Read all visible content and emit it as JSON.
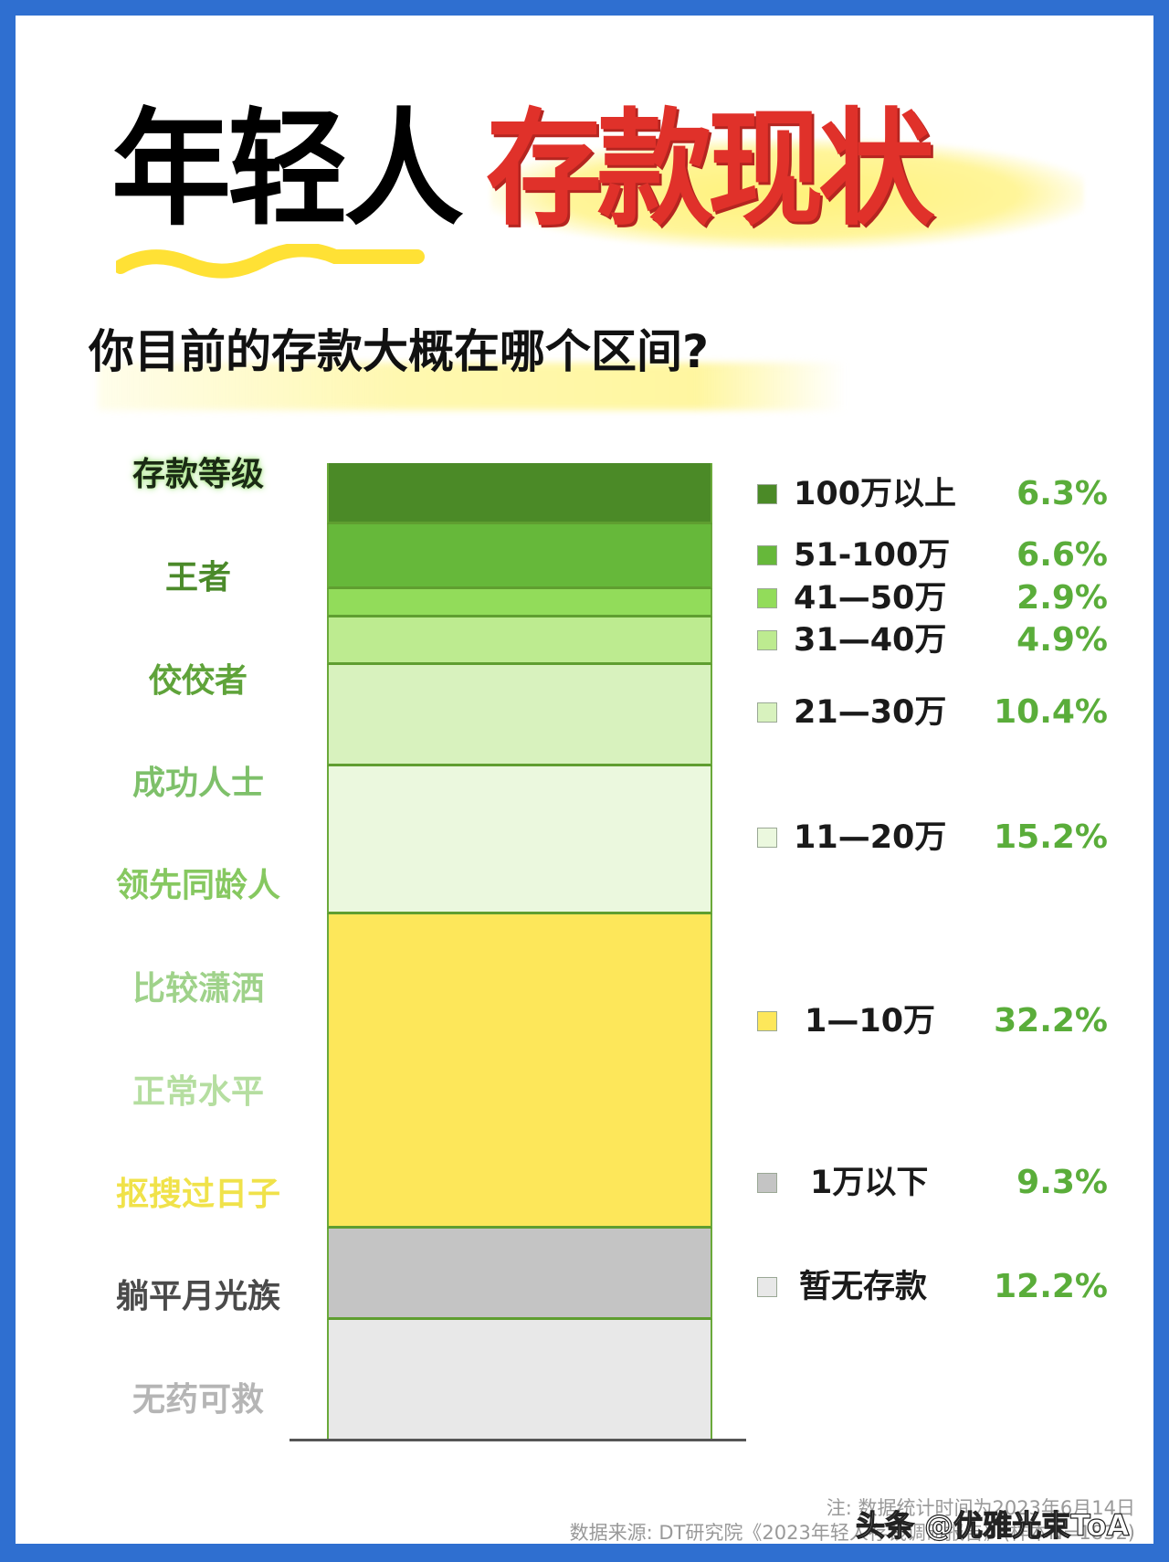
{
  "title": {
    "black_part": "年轻人",
    "red_part": "存款现状"
  },
  "question": "你目前的存款大概在哪个区间?",
  "levels_header": "存款等级",
  "levels": [
    {
      "label": "王者",
      "color": "#4b8a2a"
    },
    {
      "label": "佼佼者",
      "color": "#5fa33a"
    },
    {
      "label": "成功人士",
      "color": "#7ec06a"
    },
    {
      "label": "领先同龄人",
      "color": "#86c860"
    },
    {
      "label": "比较潇洒",
      "color": "#9fd28a"
    },
    {
      "label": "正常水平",
      "color": "#b5dea0"
    },
    {
      "label": "抠搜过日子",
      "color": "#f0e24a"
    },
    {
      "label": "躺平月光族",
      "color": "#4a4a4a"
    },
    {
      "label": "无药可救",
      "color": "#b5b5b5"
    }
  ],
  "legend": [
    {
      "label": "100万以上",
      "value": "6.3%",
      "color": "#4b8a27"
    },
    {
      "label": "51-100万",
      "value": "6.6%",
      "color": "#66b83a"
    },
    {
      "label": "41—50万",
      "value": "2.9%",
      "color": "#92dc5a"
    },
    {
      "label": "31—40万",
      "value": "4.9%",
      "color": "#bdeb90"
    },
    {
      "label": "21—30万",
      "value": "10.4%",
      "color": "#d8f2be"
    },
    {
      "label": "11—20万",
      "value": "15.2%",
      "color": "#ebf8de"
    },
    {
      "label": "1—10万",
      "value": "32.2%",
      "color": "#fde75a"
    },
    {
      "label": "1万以下",
      "value": "9.3%",
      "color": "#c4c4c4"
    },
    {
      "label": "暂无存款",
      "value": "12.2%",
      "color": "#e8e8e8"
    }
  ],
  "footer": {
    "note": "注: 数据统计时间为2023年6月14日",
    "source": "数据来源: DT研究院《2023年轻人存钱调研报告》(样本N=1832)",
    "watermark": "头条 @优雅光束ToA"
  },
  "chart_data": {
    "type": "bar",
    "subtype": "stacked-100",
    "title": "年轻人存款现状",
    "subtitle": "你目前的存款大概在哪个区间?",
    "xlabel": "",
    "ylabel": "存款等级",
    "categories": [
      "100万以上",
      "51-100万",
      "41—50万",
      "31—40万",
      "21—30万",
      "11—20万",
      "1—10万",
      "1万以下",
      "暂无存款"
    ],
    "values": [
      6.3,
      6.6,
      2.9,
      4.9,
      10.4,
      15.2,
      32.2,
      9.3,
      12.2
    ],
    "unit": "%",
    "level_names": [
      "王者",
      "佼佼者",
      "成功人士",
      "领先同龄人",
      "比较潇洒",
      "正常水平",
      "抠搜过日子",
      "躺平月光族",
      "无药可救"
    ],
    "legend_position": "right",
    "grid": false,
    "ylim": [
      0,
      100
    ],
    "source": "DT研究院《2023年轻人存钱调研报告》(样本N=1832)",
    "note": "数据统计时间为2023年6月14日"
  }
}
